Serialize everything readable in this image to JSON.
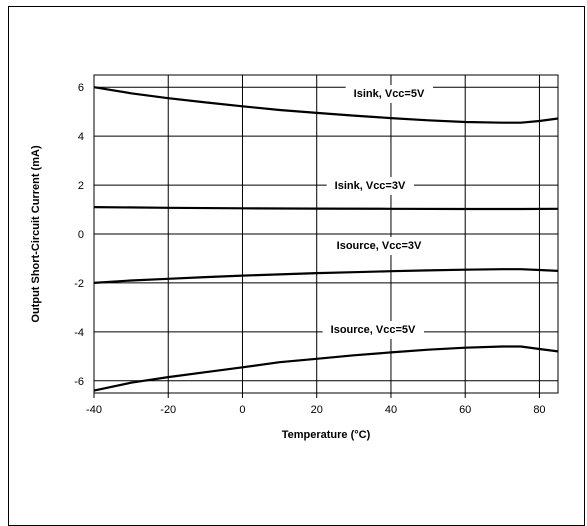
{
  "chart_data": {
    "type": "line",
    "title": "",
    "xlabel": "Temperature (°C)",
    "ylabel": "Output Short-Circuit Current (mA)",
    "xlim": [
      -40,
      85
    ],
    "ylim": [
      -6.5,
      6.5
    ],
    "xticks": [
      -40,
      -20,
      0,
      20,
      40,
      60,
      80
    ],
    "yticks": [
      -6,
      -4,
      -2,
      0,
      2,
      4,
      6
    ],
    "grid": true,
    "legend": "none",
    "series": [
      {
        "name": "Isink, Vcc=5V",
        "x": [
          -40,
          -30,
          -20,
          -10,
          0,
          10,
          20,
          30,
          40,
          50,
          60,
          70,
          75,
          80,
          85
        ],
        "y": [
          6.0,
          5.75,
          5.55,
          5.38,
          5.22,
          5.07,
          4.95,
          4.84,
          4.74,
          4.65,
          4.58,
          4.55,
          4.55,
          4.62,
          4.72
        ]
      },
      {
        "name": "Isink, Vcc=3V",
        "x": [
          -40,
          -20,
          0,
          20,
          40,
          60,
          75,
          85
        ],
        "y": [
          1.1,
          1.07,
          1.05,
          1.04,
          1.03,
          1.02,
          1.02,
          1.03
        ]
      },
      {
        "name": "Isource, Vcc=3V",
        "x": [
          -40,
          -30,
          -20,
          -10,
          0,
          10,
          20,
          30,
          40,
          50,
          60,
          70,
          75,
          80,
          85
        ],
        "y": [
          -2.0,
          -1.9,
          -1.83,
          -1.76,
          -1.7,
          -1.65,
          -1.6,
          -1.56,
          -1.52,
          -1.49,
          -1.46,
          -1.44,
          -1.44,
          -1.47,
          -1.51
        ]
      },
      {
        "name": "Isource, Vcc=5V",
        "x": [
          -40,
          -30,
          -20,
          -10,
          0,
          10,
          20,
          30,
          40,
          50,
          60,
          70,
          75,
          80,
          85
        ],
        "y": [
          -6.4,
          -6.08,
          -5.85,
          -5.65,
          -5.45,
          -5.24,
          -5.1,
          -4.96,
          -4.84,
          -4.73,
          -4.65,
          -4.6,
          -4.6,
          -4.7,
          -4.8
        ]
      }
    ]
  }
}
